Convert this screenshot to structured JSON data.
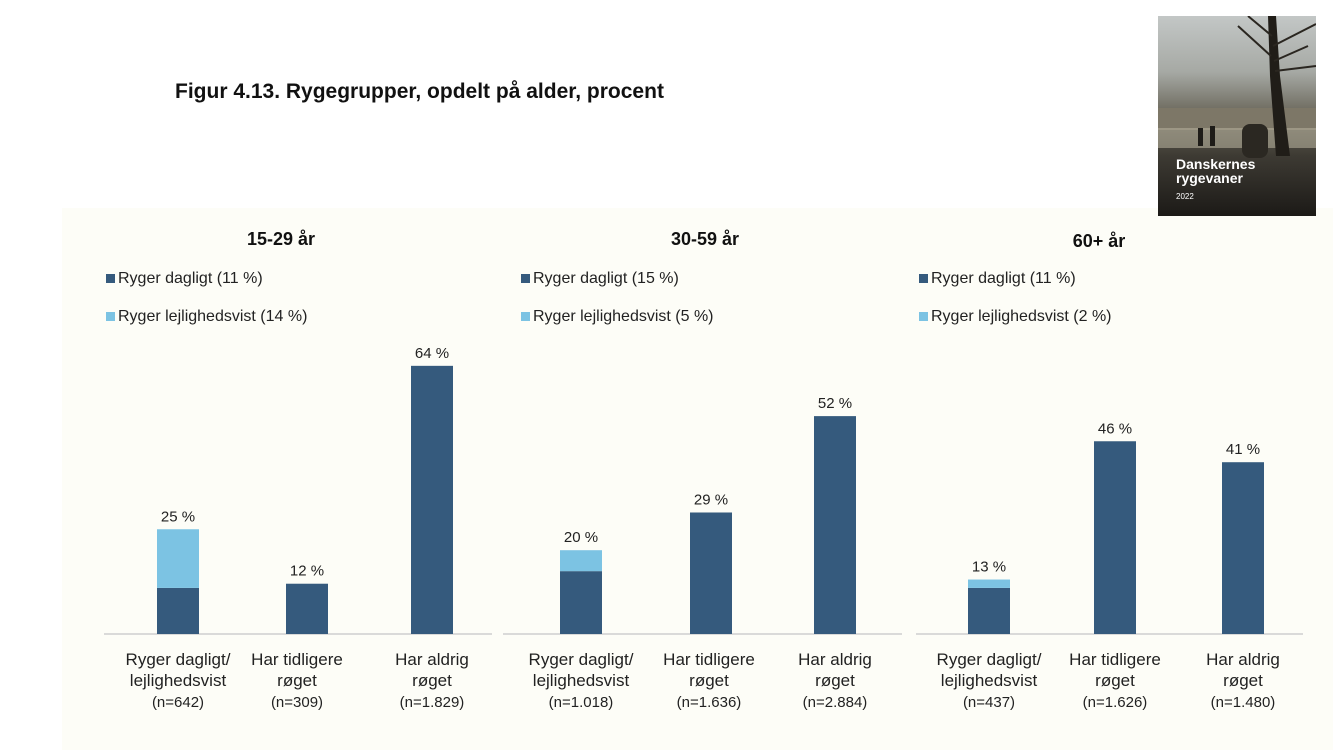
{
  "figure": {
    "title": "Figur 4.13. Rygegrupper, opdelt på alder, procent"
  },
  "cover": {
    "title_line1": "Danskernes",
    "title_line2": "rygevaner",
    "year": "2022"
  },
  "colors": {
    "daily": "#355a7d",
    "occasional": "#7cc3e3",
    "axis": "#cfcfcf",
    "text": "#222222"
  },
  "chart_data": [
    {
      "type": "bar",
      "stacked": true,
      "title": "15-29 år",
      "legend": [
        "Ryger dagligt (11 %)",
        "Ryger lejlighedsvist (14 %)"
      ],
      "categories": [
        [
          "Ryger dagligt/",
          "lejlighedsvist",
          "(n=642)"
        ],
        [
          "Har tidligere",
          "røget",
          "(n=309)"
        ],
        [
          "Har aldrig",
          "røget",
          "(n=1.829)"
        ]
      ],
      "series": [
        {
          "name": "Ryger dagligt",
          "values": [
            11,
            12,
            64
          ]
        },
        {
          "name": "Ryger lejlighedsvist",
          "values": [
            14,
            0,
            0
          ]
        }
      ],
      "data_labels": [
        "25 %",
        "12 %",
        "64 %"
      ],
      "ylim": [
        0,
        70
      ]
    },
    {
      "type": "bar",
      "stacked": true,
      "title": "30-59 år",
      "legend": [
        "Ryger dagligt (15 %)",
        "Ryger lejlighedsvist (5 %)"
      ],
      "categories": [
        [
          "Ryger dagligt/",
          "lejlighedsvist",
          "(n=1.018)"
        ],
        [
          "Har tidligere",
          "røget",
          "(n=1.636)"
        ],
        [
          "Har aldrig",
          "røget",
          "(n=2.884)"
        ]
      ],
      "series": [
        {
          "name": "Ryger dagligt",
          "values": [
            15,
            29,
            52
          ]
        },
        {
          "name": "Ryger lejlighedsvist",
          "values": [
            5,
            0,
            0
          ]
        }
      ],
      "data_labels": [
        "20 %",
        "29 %",
        "52 %"
      ],
      "ylim": [
        0,
        60
      ]
    },
    {
      "type": "bar",
      "stacked": true,
      "title": "60+ år",
      "legend": [
        "Ryger dagligt (11 %)",
        "Ryger lejlighedsvist (2 %)"
      ],
      "categories": [
        [
          "Ryger dagligt/",
          "lejlighedsvist",
          "(n=437)"
        ],
        [
          "Har tidligere",
          "røget",
          "(n=1.626)"
        ],
        [
          "Har aldrig",
          "røget",
          "(n=1.480)"
        ]
      ],
      "series": [
        {
          "name": "Ryger dagligt",
          "values": [
            11,
            46,
            41
          ]
        },
        {
          "name": "Ryger lejlighedsvist",
          "values": [
            2,
            0,
            0
          ]
        }
      ],
      "data_labels": [
        "13 %",
        "46 %",
        "41 %"
      ],
      "ylim": [
        0,
        50
      ]
    }
  ]
}
